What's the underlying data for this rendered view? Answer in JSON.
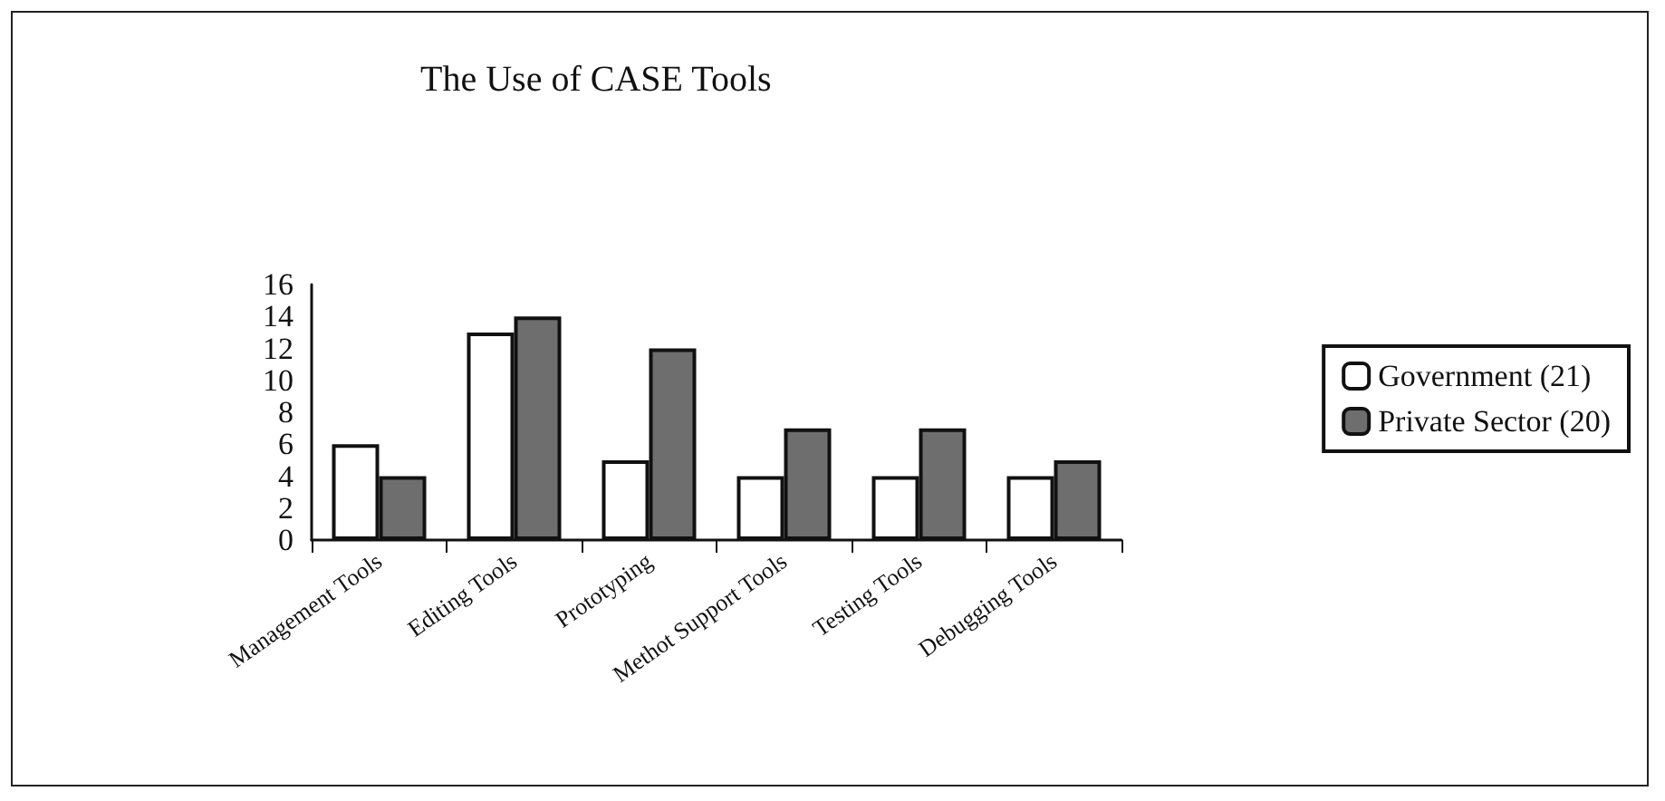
{
  "chart_data": {
    "type": "bar",
    "title": "The Use of CASE Tools",
    "categories": [
      "Management Tools",
      "Editing Tools",
      "Prototyping",
      "Methot Support Tools",
      "Testing Tools",
      "Debugging Tools"
    ],
    "series": [
      {
        "name": "Government (21)",
        "color": "#ffffff",
        "values": [
          6,
          13,
          5,
          4,
          4,
          4
        ]
      },
      {
        "name": "Private Sector (20)",
        "color": "#6e6e6e",
        "values": [
          4,
          14,
          12,
          7,
          7,
          5
        ]
      }
    ],
    "ylim": [
      0,
      16
    ],
    "yticks": [
      0,
      2,
      4,
      6,
      8,
      10,
      12,
      14,
      16
    ],
    "grid": false,
    "legend": "right"
  }
}
